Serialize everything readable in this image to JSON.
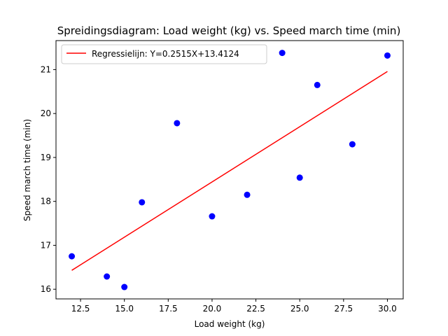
{
  "chart_data": {
    "type": "scatter",
    "title": "Spreidingsdiagram: Load weight (kg) vs. Speed march time (min)",
    "xlabel": "Load weight (kg)",
    "ylabel": "Speed march time (min)",
    "xlim": [
      11.1,
      30.9
    ],
    "ylim": [
      15.78,
      21.66
    ],
    "xticks": [
      12.5,
      15.0,
      17.5,
      20.0,
      22.5,
      25.0,
      27.5,
      30.0
    ],
    "xtick_labels": [
      "12.5",
      "15.0",
      "17.5",
      "20.0",
      "22.5",
      "25.0",
      "27.5",
      "30.0"
    ],
    "yticks": [
      16,
      17,
      18,
      19,
      20,
      21
    ],
    "ytick_labels": [
      "16",
      "17",
      "18",
      "19",
      "20",
      "21"
    ],
    "grid": false,
    "legend_position": "top-left",
    "points": {
      "color": "#0000ff",
      "x": [
        12,
        14,
        15,
        16,
        18,
        20,
        22,
        24,
        25,
        26,
        28,
        30
      ],
      "y": [
        16.75,
        16.29,
        16.05,
        17.98,
        19.78,
        17.66,
        18.15,
        21.38,
        18.54,
        20.65,
        19.3,
        21.32
      ]
    },
    "regression": {
      "name": "Regressielijn: Y=0.2515X+13.4124",
      "color": "#ff0000",
      "slope": 0.2515,
      "intercept": 13.4124,
      "x_range": [
        12,
        30
      ]
    }
  }
}
